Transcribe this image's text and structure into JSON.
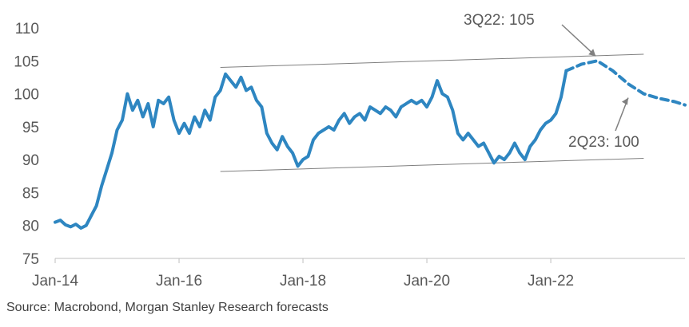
{
  "chart_data": {
    "type": "line",
    "title": "",
    "xlabel": "",
    "ylabel": "",
    "ylim": [
      75,
      110
    ],
    "yticks": [
      75,
      80,
      85,
      90,
      95,
      100,
      105,
      110
    ],
    "xlim": [
      "2014-01",
      "2024-03"
    ],
    "xticks": [
      "Jan-14",
      "Jan-16",
      "Jan-18",
      "Jan-20",
      "Jan-22"
    ],
    "grid": false,
    "legend": "none",
    "colors": {
      "series": "#2E86C1",
      "annotation": "#808080",
      "text": "#595959"
    },
    "series": [
      {
        "style": "solid",
        "x": [
          "2014-01",
          "2014-02",
          "2014-03",
          "2014-04",
          "2014-05",
          "2014-06",
          "2014-07",
          "2014-08",
          "2014-09",
          "2014-10",
          "2014-11",
          "2014-12",
          "2015-01",
          "2015-02",
          "2015-03",
          "2015-04",
          "2015-05",
          "2015-06",
          "2015-07",
          "2015-08",
          "2015-09",
          "2015-10",
          "2015-11",
          "2015-12",
          "2016-01",
          "2016-02",
          "2016-03",
          "2016-04",
          "2016-05",
          "2016-06",
          "2016-07",
          "2016-08",
          "2016-09",
          "2016-10",
          "2016-11",
          "2016-12",
          "2017-01",
          "2017-02",
          "2017-03",
          "2017-04",
          "2017-05",
          "2017-06",
          "2017-07",
          "2017-08",
          "2017-09",
          "2017-10",
          "2017-11",
          "2017-12",
          "2018-01",
          "2018-02",
          "2018-03",
          "2018-04",
          "2018-05",
          "2018-06",
          "2018-07",
          "2018-08",
          "2018-09",
          "2018-10",
          "2018-11",
          "2018-12",
          "2019-01",
          "2019-02",
          "2019-03",
          "2019-04",
          "2019-05",
          "2019-06",
          "2019-07",
          "2019-08",
          "2019-09",
          "2019-10",
          "2019-11",
          "2019-12",
          "2020-01",
          "2020-02",
          "2020-03",
          "2020-04",
          "2020-05",
          "2020-06",
          "2020-07",
          "2020-08",
          "2020-09",
          "2020-10",
          "2020-11",
          "2020-12",
          "2021-01",
          "2021-02",
          "2021-03",
          "2021-04",
          "2021-05",
          "2021-06",
          "2021-07",
          "2021-08",
          "2021-09",
          "2021-10",
          "2021-11",
          "2021-12",
          "2022-01",
          "2022-02",
          "2022-03",
          "2022-04"
        ],
        "values": [
          80.5,
          80.8,
          80.1,
          79.8,
          80.2,
          79.6,
          80.0,
          81.5,
          83.0,
          86.0,
          88.5,
          91.0,
          94.5,
          96.0,
          100.0,
          97.5,
          99.0,
          96.5,
          98.5,
          95.0,
          99.0,
          98.5,
          99.5,
          96.0,
          94.0,
          95.5,
          94.0,
          96.5,
          95.0,
          97.5,
          96.0,
          99.5,
          100.5,
          103.0,
          102.0,
          101.0,
          102.5,
          100.5,
          101.0,
          99.0,
          98.0,
          94.0,
          92.5,
          91.5,
          93.5,
          92.0,
          91.0,
          89.0,
          90.0,
          90.5,
          93.0,
          94.0,
          94.5,
          95.0,
          94.5,
          96.0,
          97.0,
          95.5,
          96.5,
          97.0,
          96.0,
          98.0,
          97.5,
          97.0,
          98.0,
          97.5,
          96.5,
          98.0,
          98.5,
          99.0,
          98.5,
          99.0,
          98.0,
          99.5,
          102.0,
          100.0,
          99.5,
          97.5,
          94.0,
          93.0,
          94.0,
          93.0,
          92.0,
          92.5,
          91.0,
          89.5,
          90.5,
          90.0,
          91.0,
          92.5,
          91.0,
          90.0,
          92.0,
          93.0,
          94.5,
          95.5,
          96.0,
          97.0,
          99.5,
          103.5
        ]
      },
      {
        "style": "dashed",
        "x": [
          "2022-04",
          "2022-07",
          "2022-10",
          "2023-01",
          "2023-04",
          "2023-07",
          "2023-10",
          "2024-01",
          "2024-03"
        ],
        "values": [
          103.5,
          104.5,
          105.0,
          103.5,
          101.5,
          100.0,
          99.3,
          98.8,
          98.3
        ]
      }
    ],
    "trendlines": [
      {
        "from": [
          "2016-09",
          104.0
        ],
        "to": [
          "2023-07",
          106.0
        ]
      },
      {
        "from": [
          "2016-09",
          88.2
        ],
        "to": [
          "2023-07",
          90.2
        ]
      }
    ],
    "annotations": [
      {
        "text": "3Q22: 105",
        "point": [
          "2022-10",
          105.0
        ]
      },
      {
        "text": "2Q23: 100",
        "point": [
          "2023-04",
          100.0
        ]
      }
    ]
  },
  "source_text": "Source: Macrobond, Morgan Stanley Research forecasts"
}
